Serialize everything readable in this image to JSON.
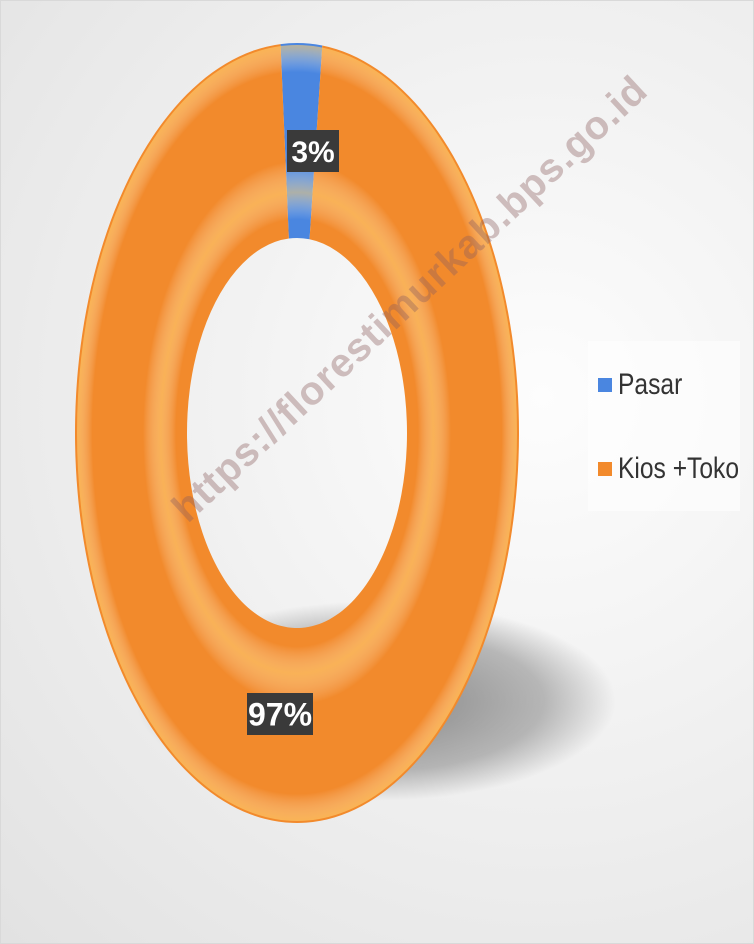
{
  "chart_data": {
    "type": "pie",
    "donut": true,
    "title": "",
    "slices": [
      {
        "label": "Pasar",
        "value": 3,
        "display": "3%",
        "color": "#4a86e0"
      },
      {
        "label": "Kios +Toko",
        "value": 97,
        "display": "97%",
        "color": "#f28a2c"
      }
    ],
    "legend_position": "right"
  },
  "watermark": "https://florestimurkab.bps.go.id"
}
